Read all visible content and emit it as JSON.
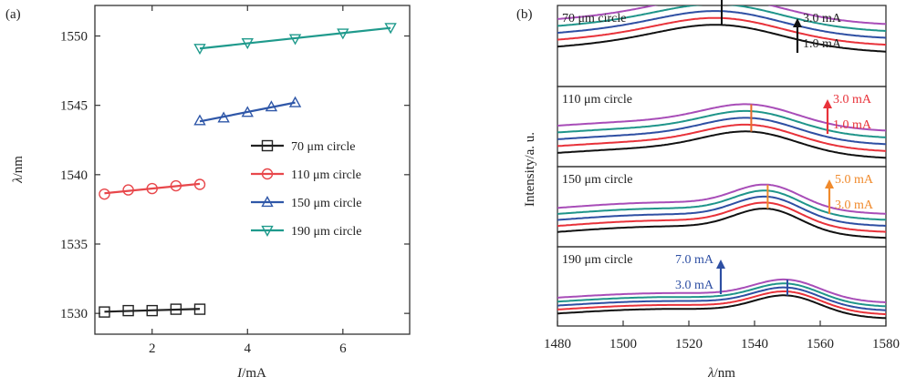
{
  "chart_data": [
    {
      "panel_label": "(a)",
      "type": "scatter",
      "xlabel_italic": "I",
      "xlabel_unit": "/mA",
      "ylabel_italic": "λ",
      "ylabel_unit": "/nm",
      "xlim": [
        0.8,
        7.4
      ],
      "ylim": [
        1528.5,
        1552.2
      ],
      "xticks": [
        2,
        4,
        6
      ],
      "yticks": [
        1530,
        1535,
        1540,
        1545,
        1550
      ],
      "grid": false,
      "legend_placement": "center-right",
      "series": [
        {
          "name": "70 μm circle",
          "color": "#222222",
          "marker": "square",
          "x": [
            1.0,
            1.5,
            2.0,
            2.5,
            3.0
          ],
          "y": [
            1530.1,
            1530.2,
            1530.2,
            1530.3,
            1530.3
          ]
        },
        {
          "name": "110 μm circle",
          "color": "#e8474b",
          "marker": "circle",
          "x": [
            1.0,
            1.5,
            2.0,
            2.5,
            3.0
          ],
          "y": [
            1538.6,
            1538.9,
            1539.0,
            1539.2,
            1539.3
          ]
        },
        {
          "name": "150 μm circle",
          "color": "#2f57a8",
          "marker": "triangle-up",
          "x": [
            3.0,
            3.5,
            4.0,
            4.5,
            5.0
          ],
          "y": [
            1543.9,
            1544.1,
            1544.5,
            1544.9,
            1545.2
          ]
        },
        {
          "name": "190 μm circle",
          "color": "#1f9a8c",
          "marker": "triangle-down",
          "x": [
            3.0,
            4.0,
            5.0,
            6.0,
            7.0
          ],
          "y": [
            1549.1,
            1549.5,
            1549.8,
            1550.2,
            1550.6
          ]
        }
      ]
    },
    {
      "panel_label": "(b)",
      "type": "line",
      "xlabel_italic": "λ",
      "xlabel_unit": "/nm",
      "ylabel": "Intensity/a. u.",
      "xlim": [
        1480,
        1580
      ],
      "xticks": [
        1480,
        1500,
        1520,
        1540,
        1560,
        1580
      ],
      "curve_colors": [
        "#111111",
        "#e8323a",
        "#2e4fa3",
        "#1f958a",
        "#a84db8"
      ],
      "panels": [
        {
          "label": "70 μm circle",
          "peak_nm": 1530,
          "arrow_color": "#111111",
          "arrow_top": "3.0 mA",
          "arrow_bottom": "1.0 mA",
          "marker_color": "#111111"
        },
        {
          "label": "110 μm circle",
          "peak_nm": 1539,
          "arrow_color": "#e8323a",
          "arrow_top": "3.0 mA",
          "arrow_bottom": "1.0 mA",
          "marker_color": "#e86a2a"
        },
        {
          "label": "150 μm circle",
          "peak_nm": 1544,
          "arrow_color": "#f08a2c",
          "arrow_top": "5.0 mA",
          "arrow_bottom": "3.0 mA",
          "marker_color": "#f08a2c"
        },
        {
          "label": "190 μm circle",
          "peak_nm": 1550,
          "arrow_color": "#2e4fa3",
          "arrow_top": "7.0 mA",
          "arrow_bottom": "3.0 mA",
          "marker_color": "#2e4fa3"
        }
      ]
    }
  ]
}
